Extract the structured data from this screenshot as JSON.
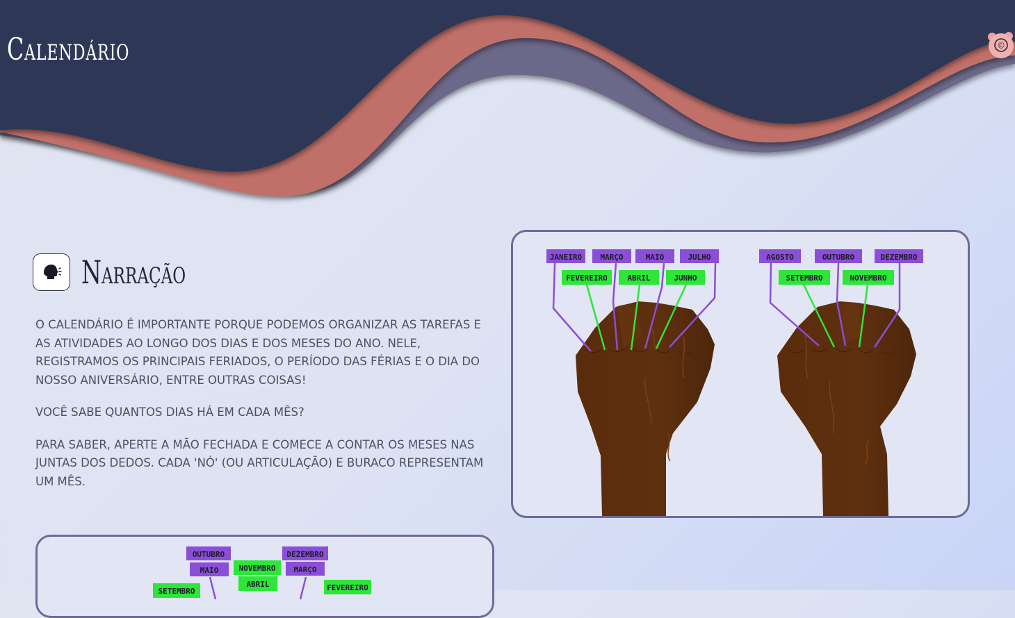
{
  "header": {
    "title": "Calendário",
    "copyright_symbol": "©"
  },
  "section": {
    "title": "Narração",
    "audio_icon": "speaking-head-icon"
  },
  "paragraphs": [
    "O CALENDÁRIO É IMPORTANTE PORQUE PODEMOS ORGANIZAR AS TAREFAS E AS ATIVIDADES AO LONGO DOS DIAS E DOS MESES DO ANO. NELE, REGISTRAMOS OS PRINCIPAIS FERIADOS, O PERÍODO DAS FÉRIAS E O DIA DO NOSSO ANIVERSÁRIO, ENTRE OUTRAS COISAS!",
    "VOCÊ SABE QUANTOS DIAS HÁ EM CADA MÊS?",
    "PARA SABER, APERTE A MÃO FECHADA E COMECE A CONTAR OS MESES NAS JUNTAS DOS DEDOS. CADA 'NÓ' (OU ARTICULAÇÃO) E BURACO REPRESENTAM UM MÊS."
  ],
  "hands_figure": {
    "left_hand": {
      "knuckle_months": [
        "JANEIRO",
        "MARÇO",
        "MAIO",
        "JULHO"
      ],
      "gap_months": [
        "FEVEREIRO",
        "ABRIL",
        "JUNHO"
      ]
    },
    "right_hand": {
      "knuckle_months": [
        "AGOSTO",
        "OUTUBRO",
        "DEZEMBRO"
      ],
      "gap_months": [
        "SETEMBRO",
        "NOVEMBRO"
      ]
    }
  },
  "second_figure": {
    "labels": [
      "OUTUBRO",
      "DEZEMBRO",
      "MAIO",
      "NOVEMBRO",
      "MARÇO",
      "ABRIL",
      "SETEMBRO",
      "FEVEREIRO"
    ]
  },
  "colors": {
    "header_navy": "#2f3756",
    "wave_salmon": "#c07067",
    "wave_purple": "#6c6789",
    "knuckle_label": "#8a4fd6",
    "gap_label": "#2ee53a",
    "skin": "#5c2f0f"
  }
}
